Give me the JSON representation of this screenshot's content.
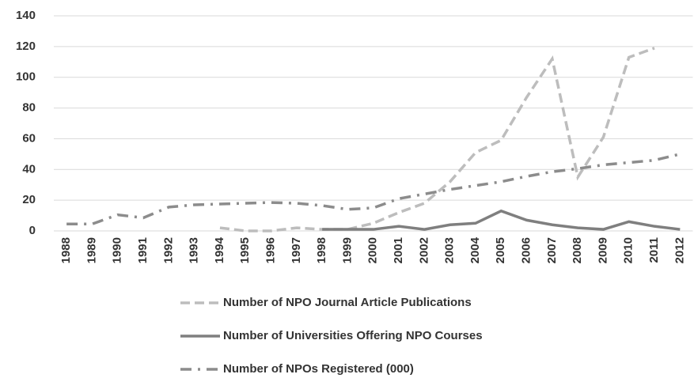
{
  "chart_data": {
    "type": "line",
    "categories": [
      "1988",
      "1989",
      "1990",
      "1991",
      "1992",
      "1993",
      "1994",
      "1995",
      "1996",
      "1997",
      "1998",
      "1999",
      "2000",
      "2001",
      "2002",
      "2003",
      "2004",
      "2005",
      "2006",
      "2007",
      "2008",
      "2009",
      "2010",
      "2011",
      "2012"
    ],
    "series": [
      {
        "name": "Number of NPO Journal Article Publications",
        "color": "#bdbdbd",
        "dash": "dashed",
        "values": [
          null,
          null,
          null,
          null,
          null,
          null,
          2,
          0,
          0,
          2,
          1,
          1,
          5,
          12,
          18,
          32,
          51,
          59,
          87,
          112,
          35,
          61,
          113,
          119,
          null
        ]
      },
      {
        "name": "Number of Universities Offering NPO Courses",
        "color": "#7f7f7f",
        "dash": "solid",
        "values": [
          null,
          null,
          null,
          null,
          null,
          null,
          null,
          null,
          null,
          null,
          1,
          1,
          1,
          3,
          1,
          4,
          5,
          13,
          7,
          4,
          2,
          1,
          6,
          3,
          1
        ]
      },
      {
        "name": "Number of NPOs Registered (000)",
        "color": "#8c8c8c",
        "dash": "dashdot",
        "values": [
          4.5,
          4.5,
          10.5,
          8.5,
          15.5,
          17,
          17.5,
          18,
          18.5,
          18,
          16.5,
          14,
          15,
          21,
          24,
          27,
          29.5,
          32,
          35.5,
          38.5,
          40.5,
          43,
          44.5,
          46,
          50
        ]
      }
    ],
    "ylim": [
      0,
      140
    ],
    "yticks": [
      0,
      20,
      40,
      60,
      80,
      100,
      120,
      140
    ],
    "grid": true,
    "legend": "bottom"
  }
}
